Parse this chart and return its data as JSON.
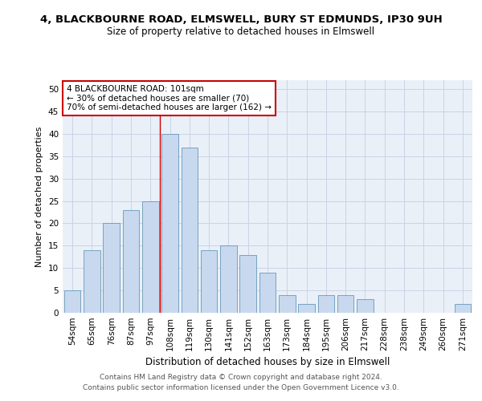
{
  "title1": "4, BLACKBOURNE ROAD, ELMSWELL, BURY ST EDMUNDS, IP30 9UH",
  "title2": "Size of property relative to detached houses in Elmswell",
  "xlabel": "Distribution of detached houses by size in Elmswell",
  "ylabel": "Number of detached properties",
  "categories": [
    "54sqm",
    "65sqm",
    "76sqm",
    "87sqm",
    "97sqm",
    "108sqm",
    "119sqm",
    "130sqm",
    "141sqm",
    "152sqm",
    "163sqm",
    "173sqm",
    "184sqm",
    "195sqm",
    "206sqm",
    "217sqm",
    "228sqm",
    "238sqm",
    "249sqm",
    "260sqm",
    "271sqm"
  ],
  "values": [
    5,
    14,
    20,
    23,
    25,
    40,
    37,
    14,
    15,
    13,
    9,
    4,
    2,
    4,
    4,
    3,
    0,
    0,
    0,
    0,
    2
  ],
  "bar_color": "#c8d8ee",
  "bar_edge_color": "#6699bb",
  "grid_color": "#c8d4e4",
  "bg_color": "#eaf0f8",
  "marker_line_color": "#cc0000",
  "annotation_line1": "4 BLACKBOURNE ROAD: 101sqm",
  "annotation_line2": "← 30% of detached houses are smaller (70)",
  "annotation_line3": "70% of semi-detached houses are larger (162) →",
  "annotation_box_color": "#cc0000",
  "footer1": "Contains HM Land Registry data © Crown copyright and database right 2024.",
  "footer2": "Contains public sector information licensed under the Open Government Licence v3.0.",
  "ylim": [
    0,
    52
  ],
  "yticks": [
    0,
    5,
    10,
    15,
    20,
    25,
    30,
    35,
    40,
    45,
    50
  ],
  "title1_fontsize": 9.5,
  "title2_fontsize": 8.5,
  "xlabel_fontsize": 8.5,
  "ylabel_fontsize": 8,
  "tick_fontsize": 7.5,
  "footer_fontsize": 6.5
}
